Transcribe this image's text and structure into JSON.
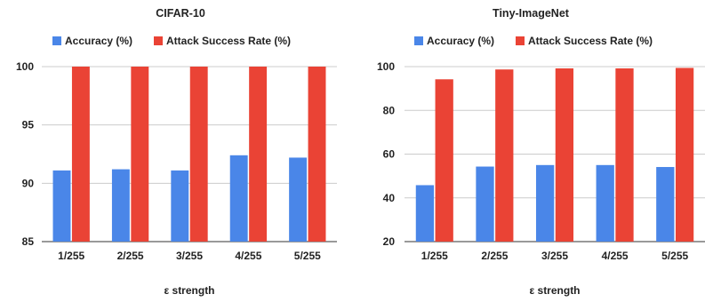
{
  "legend": {
    "accuracy": "Accuracy (%)",
    "asr": "Attack Success Rate (%)"
  },
  "colors": {
    "accuracy": "#4A86E8",
    "asr": "#EA4335",
    "grid": "#CCCCCC",
    "baseline": "#333333"
  },
  "chart_data": [
    {
      "type": "bar",
      "title": "CIFAR-10",
      "xlabel": "ε strength",
      "ylabel": "",
      "categories": [
        "1/255",
        "2/255",
        "3/255",
        "4/255",
        "5/255"
      ],
      "ylim": [
        85,
        100
      ],
      "yticks": [
        85,
        90,
        95,
        100
      ],
      "grid": true,
      "legend_position": "top",
      "series": [
        {
          "name": "Accuracy (%)",
          "values": [
            91.1,
            91.2,
            91.1,
            92.4,
            92.2
          ]
        },
        {
          "name": "Attack Success Rate (%)",
          "values": [
            100,
            100,
            100,
            100,
            100
          ]
        }
      ]
    },
    {
      "type": "bar",
      "title": "Tiny-ImageNet",
      "xlabel": "ε strength",
      "ylabel": "",
      "categories": [
        "1/255",
        "2/255",
        "3/255",
        "4/255",
        "5/255"
      ],
      "ylim": [
        20,
        100
      ],
      "yticks": [
        20,
        40,
        60,
        80,
        100
      ],
      "grid": true,
      "legend_position": "top",
      "series": [
        {
          "name": "Accuracy (%)",
          "values": [
            45.8,
            54.3,
            55.0,
            55.0,
            54.1
          ]
        },
        {
          "name": "Attack Success Rate (%)",
          "values": [
            94.2,
            98.7,
            99.2,
            99.2,
            99.4
          ]
        }
      ]
    }
  ]
}
